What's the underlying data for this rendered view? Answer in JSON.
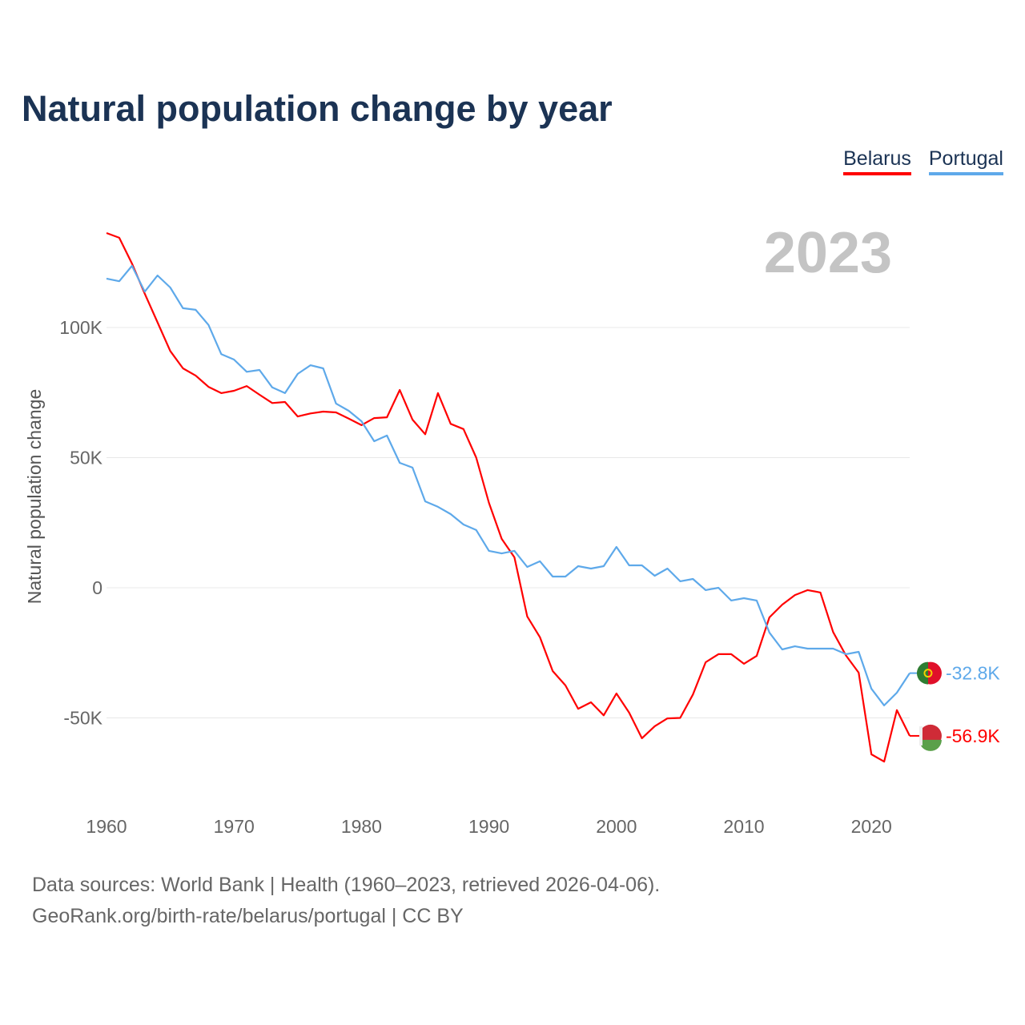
{
  "chart_data": {
    "type": "line",
    "title": "Natural population change by year",
    "xlabel": "",
    "ylabel": "Natural population change",
    "year_display": "2023",
    "xlim": [
      1960,
      2023
    ],
    "ylim": [
      -75000,
      140000
    ],
    "x_ticks": [
      1960,
      1970,
      1980,
      1990,
      2000,
      2010,
      2020
    ],
    "y_ticks": [
      {
        "value": 100000,
        "label": "100K"
      },
      {
        "value": 50000,
        "label": "50K"
      },
      {
        "value": 0,
        "label": "0"
      },
      {
        "value": -50000,
        "label": "-50K"
      }
    ],
    "grid": true,
    "legend_position": "top-right",
    "x": [
      1960,
      1961,
      1962,
      1963,
      1964,
      1965,
      1966,
      1967,
      1968,
      1969,
      1970,
      1971,
      1972,
      1973,
      1974,
      1975,
      1976,
      1977,
      1978,
      1979,
      1980,
      1981,
      1982,
      1983,
      1984,
      1985,
      1986,
      1987,
      1988,
      1989,
      1990,
      1991,
      1992,
      1993,
      1994,
      1995,
      1996,
      1997,
      1998,
      1999,
      2000,
      2001,
      2002,
      2003,
      2004,
      2005,
      2006,
      2007,
      2008,
      2009,
      2010,
      2011,
      2012,
      2013,
      2014,
      2015,
      2016,
      2017,
      2018,
      2019,
      2020,
      2021,
      2022,
      2023
    ],
    "series": [
      {
        "name": "Belarus",
        "color": "#ff0000",
        "end_label": "-56.9K",
        "values": [
          136300,
          134500,
          124600,
          113000,
          102000,
          91000,
          84300,
          81500,
          77200,
          74800,
          75700,
          77500,
          74200,
          71000,
          71400,
          65800,
          67000,
          67700,
          67400,
          65000,
          62500,
          65200,
          65500,
          76000,
          64600,
          59000,
          74800,
          63000,
          61000,
          50000,
          32600,
          18800,
          11700,
          -11000,
          -19000,
          -32000,
          -37500,
          -46500,
          -44000,
          -49000,
          -40600,
          -48000,
          -57800,
          -53200,
          -50200,
          -50000,
          -41000,
          -28600,
          -25500,
          -25500,
          -29200,
          -26200,
          -11400,
          -6500,
          -2800,
          -900,
          -1800,
          -17000,
          -26000,
          -32600,
          -64000,
          -66800,
          -47000,
          -56900
        ]
      },
      {
        "name": "Portugal",
        "color": "#5ea9ea",
        "end_label": "-32.8K",
        "values": [
          118800,
          117800,
          123700,
          113800,
          120000,
          115400,
          107400,
          106800,
          101000,
          89800,
          87700,
          83000,
          83700,
          77000,
          74800,
          82200,
          85500,
          84300,
          70800,
          68000,
          64000,
          56300,
          58500,
          48000,
          46200,
          33200,
          31100,
          28300,
          24300,
          22200,
          14200,
          13200,
          14200,
          8000,
          10200,
          4300,
          4300,
          8300,
          7400,
          8300,
          15700,
          8600,
          8600,
          4600,
          7400,
          2500,
          3400,
          -900,
          0,
          -4900,
          -4000,
          -4900,
          -17200,
          -23700,
          -22500,
          -23400,
          -23400,
          -23400,
          -25500,
          -24600,
          -38800,
          -45200,
          -40300,
          -32800
        ]
      }
    ]
  },
  "footer": {
    "line1": "Data sources: World Bank | Health (1960–2023, retrieved 2026-04-06).",
    "line2": "GeoRank.org/birth-rate/belarus/portugal | CC BY"
  }
}
